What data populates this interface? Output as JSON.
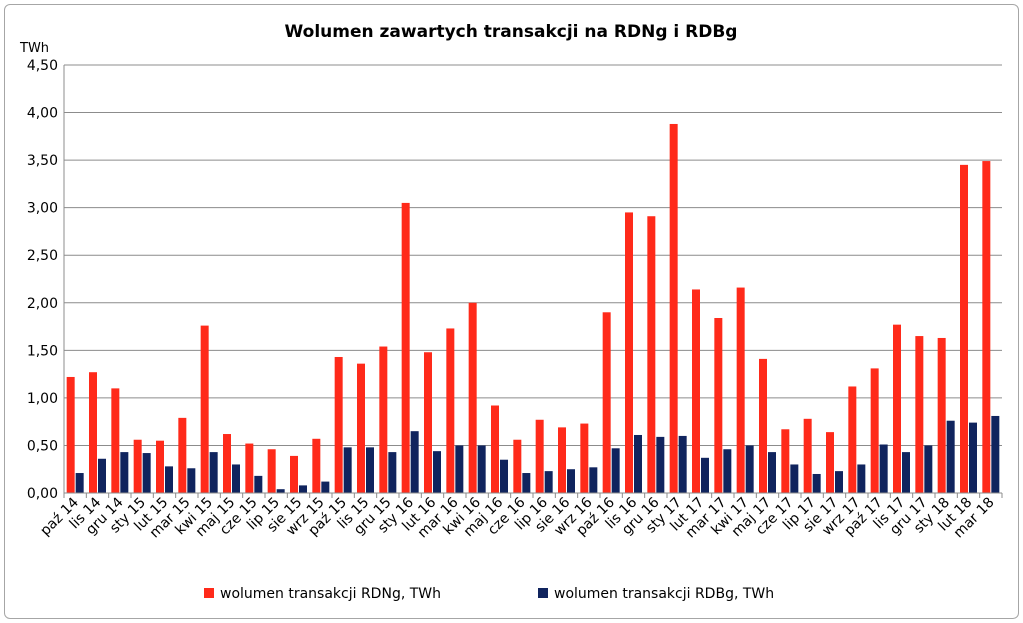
{
  "chart_data": {
    "type": "bar",
    "title": "Wolumen zawartych transakcji na RDNg i RDBg",
    "ylabel": "TWh",
    "xlabel": "",
    "ylim": [
      0,
      4.5
    ],
    "yticks": [
      "0,00",
      "0,50",
      "1,00",
      "1,50",
      "2,00",
      "2,50",
      "3,00",
      "3,50",
      "4,00",
      "4,50"
    ],
    "grid": true,
    "legend_position": "bottom",
    "categories": [
      "paź 14",
      "lis 14",
      "gru 14",
      "sty 15",
      "lut 15",
      "mar 15",
      "kwi 15",
      "maj 15",
      "cze 15",
      "lip 15",
      "sie 15",
      "wrz 15",
      "paź 15",
      "lis 15",
      "gru 15",
      "sty 16",
      "lut 16",
      "mar 16",
      "kwi 16",
      "maj 16",
      "cze 16",
      "lip 16",
      "sie 16",
      "wrz 16",
      "paź 16",
      "lis 16",
      "gru 16",
      "sty 17",
      "lut 17",
      "mar 17",
      "kwi 17",
      "maj 17",
      "cze 17",
      "lip 17",
      "sie 17",
      "wrz 17",
      "paź 17",
      "lis 17",
      "gru 17",
      "sty 18",
      "lut 18",
      "mar 18"
    ],
    "series": [
      {
        "name": "wolumen transakcji RDNg, TWh",
        "color": "#ff2a1a",
        "values": [
          1.22,
          1.27,
          1.1,
          0.56,
          0.55,
          0.79,
          1.76,
          0.62,
          0.52,
          0.46,
          0.39,
          0.57,
          1.43,
          1.36,
          1.54,
          3.05,
          1.48,
          1.73,
          2.0,
          0.92,
          0.56,
          0.77,
          0.69,
          0.73,
          1.9,
          2.95,
          2.91,
          3.88,
          2.14,
          1.84,
          2.16,
          1.41,
          0.67,
          0.78,
          0.64,
          1.12,
          1.31,
          1.77,
          1.65,
          1.63,
          3.45,
          3.49
        ]
      },
      {
        "name": "wolumen transakcji RDBg, TWh",
        "color": "#10245e",
        "values": [
          0.21,
          0.36,
          0.43,
          0.42,
          0.28,
          0.26,
          0.43,
          0.3,
          0.18,
          0.04,
          0.08,
          0.12,
          0.48,
          0.48,
          0.43,
          0.65,
          0.44,
          0.5,
          0.5,
          0.35,
          0.21,
          0.23,
          0.25,
          0.27,
          0.47,
          0.61,
          0.59,
          0.6,
          0.37,
          0.46,
          0.5,
          0.43,
          0.3,
          0.2,
          0.23,
          0.3,
          0.51,
          0.43,
          0.5,
          0.76,
          0.74,
          0.81
        ]
      }
    ]
  }
}
